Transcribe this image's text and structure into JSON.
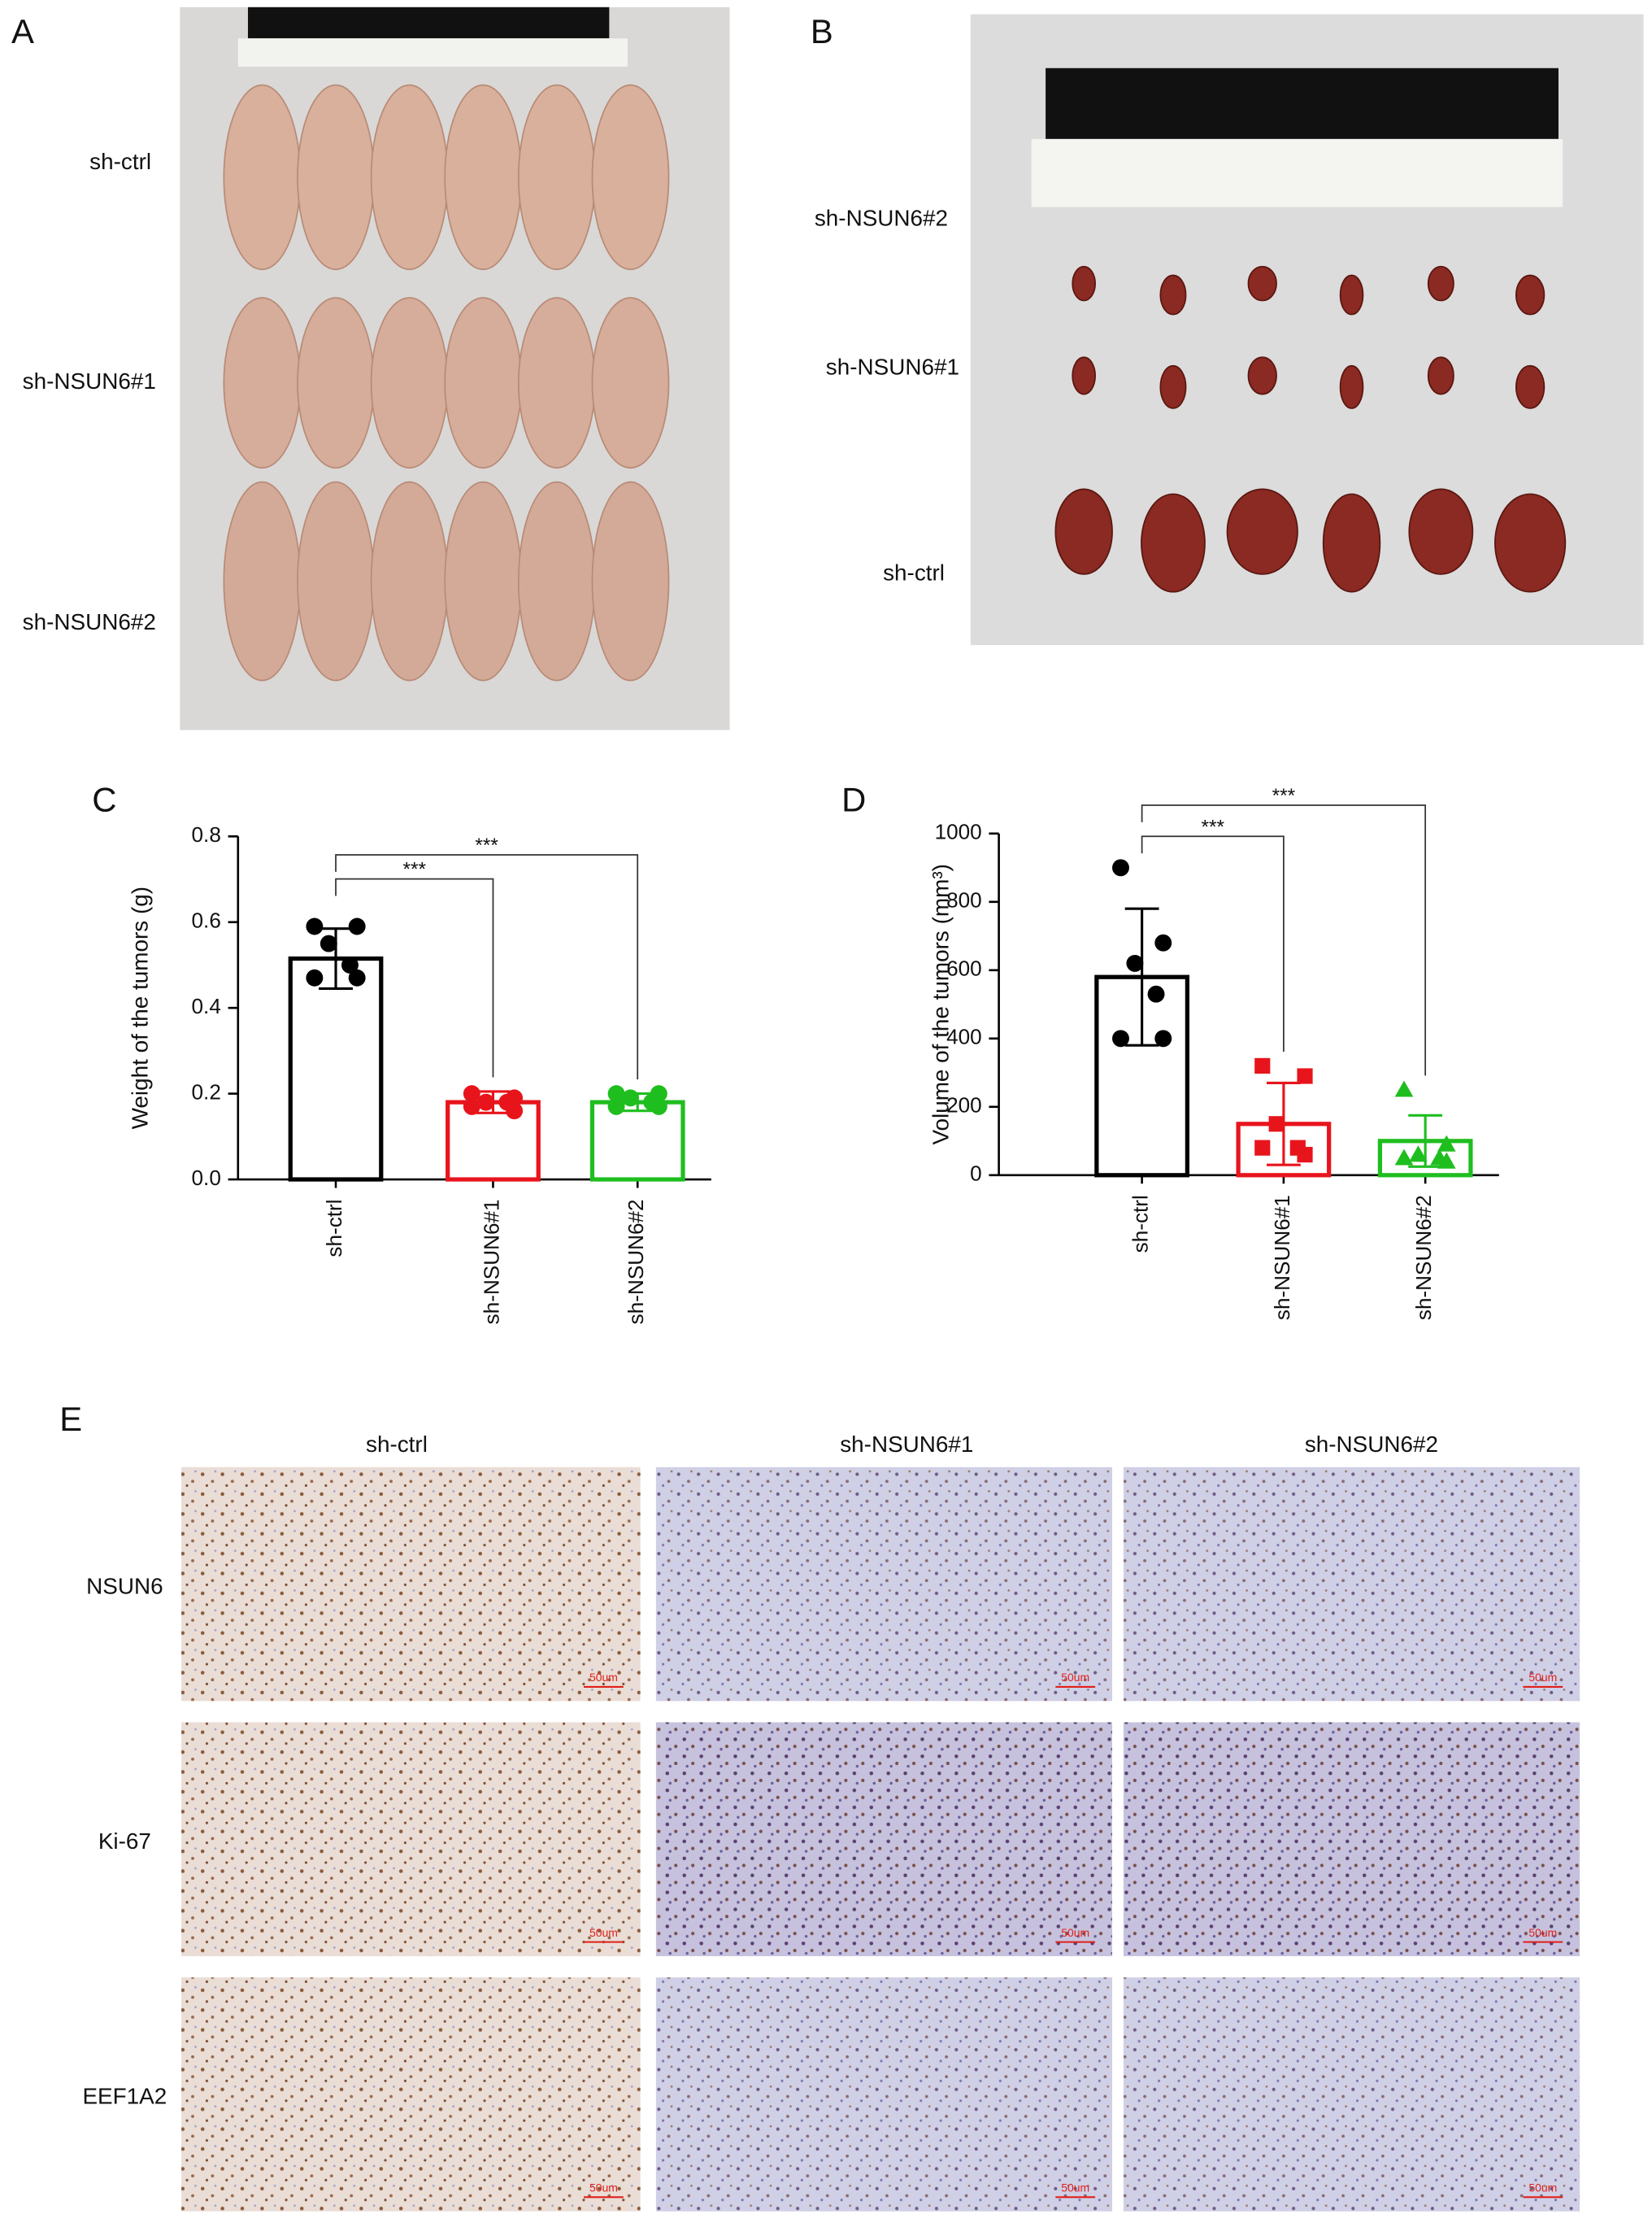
{
  "figure": {
    "panel_a": {
      "label": "A",
      "rows": [
        "sh-ctrl",
        "sh-NSUN6#1",
        "sh-NSUN6#2"
      ]
    },
    "panel_b": {
      "label": "B",
      "rows": [
        "sh-NSUN6#2",
        "sh-NSUN6#1",
        "sh-ctrl"
      ]
    },
    "panel_e": {
      "label": "E",
      "columns": [
        "sh-ctrl",
        "sh-NSUN6#1",
        "sh-NSUN6#2"
      ],
      "rows": [
        "NSUN6",
        "Ki-67",
        "EEF1A2"
      ],
      "scale_bar": "50um"
    }
  },
  "chart_data": [
    {
      "type": "bar",
      "panel": "C",
      "ylabel": "Weight of the tumors (g)",
      "categories": [
        "sh-ctrl",
        "sh-NSUN6#1",
        "sh-NSUN6#2"
      ],
      "values": [
        0.515,
        0.18,
        0.18
      ],
      "errors": [
        0.07,
        0.025,
        0.02
      ],
      "points": [
        [
          0.59,
          0.59,
          0.55,
          0.5,
          0.47,
          0.47
        ],
        [
          0.2,
          0.19,
          0.18,
          0.18,
          0.17,
          0.16
        ],
        [
          0.2,
          0.2,
          0.19,
          0.18,
          0.17,
          0.17
        ]
      ],
      "colors": [
        "#000000",
        "#e8141c",
        "#1fbe1f"
      ],
      "markers": [
        "circle",
        "circle",
        "circle"
      ],
      "ylim": [
        0,
        0.8
      ],
      "yticks": [
        {
          "value": 0,
          "label": "0.0"
        },
        0.2,
        0.4,
        0.6,
        0.8
      ],
      "annotations": [
        {
          "text": "***",
          "from": 0,
          "to": 1
        },
        {
          "text": "***",
          "from": 0,
          "to": 2
        }
      ]
    },
    {
      "type": "bar",
      "panel": "D",
      "ylabel": "Volume of the tumors (mm³)",
      "categories": [
        "sh-ctrl",
        "sh-NSUN6#1",
        "sh-NSUN6#2"
      ],
      "values": [
        580,
        150,
        100
      ],
      "errors": [
        200,
        120,
        75
      ],
      "points": [
        [
          900,
          680,
          620,
          530,
          400,
          400
        ],
        [
          320,
          290,
          150,
          80,
          80,
          60
        ],
        [
          250,
          90,
          60,
          50,
          50,
          40
        ]
      ],
      "colors": [
        "#000000",
        "#e8141c",
        "#1fbe1f"
      ],
      "markers": [
        "circle",
        "square",
        "triangle"
      ],
      "ylim": [
        0,
        1000
      ],
      "yticks": [
        0,
        200,
        400,
        600,
        800,
        1000
      ],
      "annotations": [
        {
          "text": "***",
          "from": 0,
          "to": 1
        },
        {
          "text": "***",
          "from": 0,
          "to": 2
        }
      ]
    }
  ]
}
